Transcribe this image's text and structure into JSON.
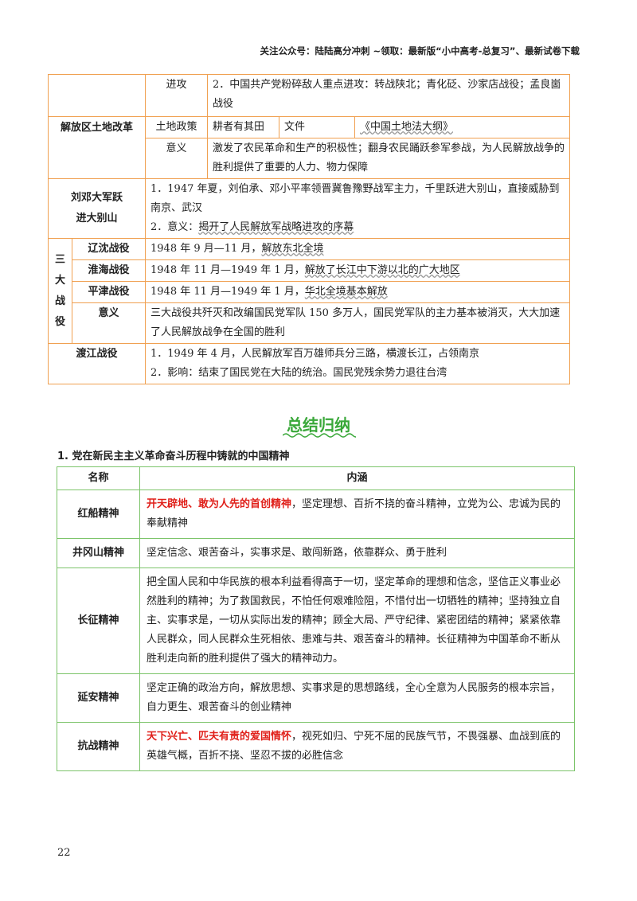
{
  "header": {
    "note": "关注公众号：陆陆高分冲刺  ~领取：最新版“小中高考-总复习”、最新试卷下载"
  },
  "table1": {
    "attack_label": "进攻",
    "attack_text": "2．中国共产党粉碎敌人重点进攻：转战陕北；青化砭、沙家店战役；孟良崮战役",
    "land_reform_label": "解放区土地改革",
    "land_policy_label": "土地政策",
    "land_policy_value": "耕者有其田",
    "document_label": "文件",
    "document_value": "《中国土地法大纲》",
    "significance_label": "意义",
    "significance_text": "激发了农民革命和生产的积极性；翻身农民踊跃参军参战，为人民解放战争的胜利提供了重要的人力、物力保障",
    "dabieshan_label_1": "刘邓大军跃",
    "dabieshan_label_2": "进大别山",
    "dabieshan_line1": "1．1947 年夏，刘伯承、邓小平率领晋冀鲁豫野战军主力，千里跃进大别山，直接威胁到南京、武汉",
    "dabieshan_line2_prefix": "2．意义：",
    "dabieshan_line2_underlined": "揭开了人民解放军战略进攻的序幕",
    "three_battles_chars": [
      "三",
      "大",
      "战",
      "役"
    ],
    "liaoshen_label": "辽沈战役",
    "liaoshen_prefix": "1948 年 9 月—11 月，",
    "liaoshen_underlined": "解放东北全境",
    "huaihai_label": "淮海战役",
    "huaihai_prefix": "1948 年 11 月—1949 年 1 月，",
    "huaihai_underlined": "解放了长江中下游以北的广大地区",
    "pingjin_label": "平津战役",
    "pingjin_prefix": "1948 年 11 月—1949 年 1 月，",
    "pingjin_underlined": "华北全境基本解放",
    "three_sig_label": "意义",
    "three_sig_text": "三大战役共歼灭和改编国民党军队 150 多万人，国民党军队的主力基本被消灭，大大加速了人民解放战争在全国的胜利",
    "crossing_label": "渡江战役",
    "crossing_line1": "1．1949 年 4 月，人民解放军百万雄师兵分三路，横渡长江，占领南京",
    "crossing_line2": "2．影响：结束了国民党在大陆的统治。国民党残余势力退往台湾"
  },
  "summary": {
    "title": "总结归纳",
    "subheading": "1.  党在新民主主义革命奋斗历程中铸就的中国精神",
    "col_name": "名称",
    "col_content": "内涵",
    "rows": [
      {
        "name": "红船精神",
        "highlight": "开天辟地、敢为人先的首创精神",
        "text": "，坚定理想、百折不挠的奋斗精神，立党为公、忠诚为民的奉献精神"
      },
      {
        "name": "井冈山精神",
        "highlight": "",
        "text": "坚定信念、艰苦奋斗，实事求是、敢闯新路，依靠群众、勇于胜利"
      },
      {
        "name": "长征精神",
        "highlight": "",
        "text": "把全国人民和中华民族的根本利益看得高于一切，坚定革命的理想和信念，坚信正义事业必然胜利的精神；为了救国救民，不怕任何艰难险阻，不惜付出一切牺牲的精神；坚持独立自主、实事求是，一切从实际出发的精神；顾全大局、严守纪律、紧密团结的精神；紧紧依靠人民群众，同人民群众生死相依、患难与共、艰苦奋斗的精神。长征精神为中国革命不断从胜利走向新的胜利提供了强大的精神动力。"
      },
      {
        "name": "延安精神",
        "highlight": "",
        "text": "坚定正确的政治方向，解放思想、实事求是的思想路线，全心全意为人民服务的根本宗旨，自力更生、艰苦奋斗的创业精神"
      },
      {
        "name": "抗战精神",
        "highlight": "天下兴亡、匹夫有责的爱国情怀",
        "text": "，视死如归、宁死不屈的民族气节，不畏强暴、血战到底的英雄气概，百折不挠、坚忍不拔的必胜信念"
      }
    ]
  },
  "footer": {
    "page_number": "22"
  },
  "colors": {
    "table1_border": "#f0a050",
    "table2_border": "#7cc46a",
    "title_green": "#3aa83a",
    "highlight_red": "#e0201a"
  }
}
